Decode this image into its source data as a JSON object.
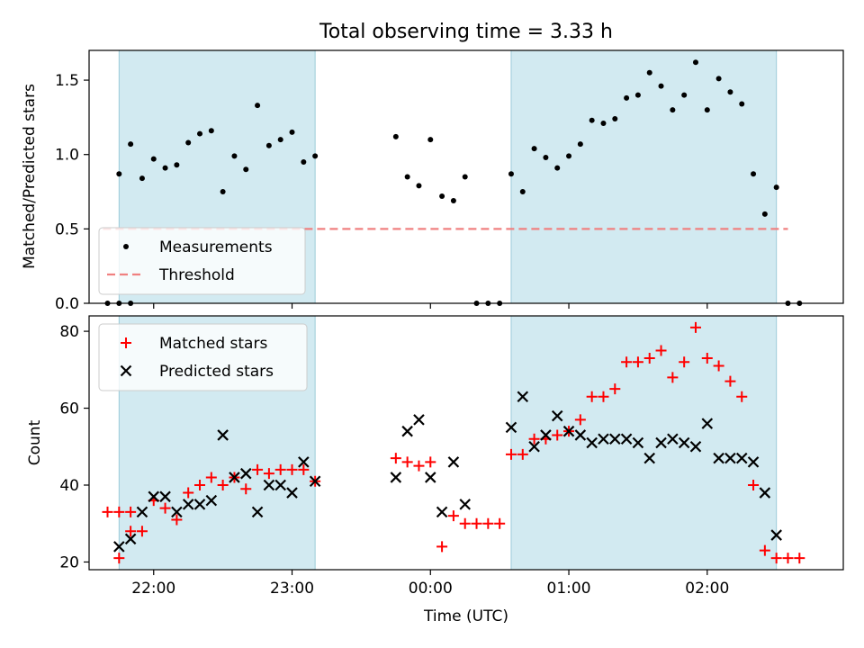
{
  "chart_data": [
    {
      "type": "scatter",
      "title": "Total observing time = 3.33 h",
      "xlabel": "",
      "ylabel": "Matched/Predicted stars",
      "ylim": [
        0,
        1.7
      ],
      "yticks": [
        0.0,
        0.5,
        1.0,
        1.5
      ],
      "yticklabels": [
        "0.0",
        "0.5",
        "1.0",
        "1.5"
      ],
      "xlim": [
        "21:32",
        "02:59"
      ],
      "xticks": [
        "22:00",
        "23:00",
        "00:00",
        "01:00",
        "02:00"
      ],
      "shaded_intervals": [
        [
          "21:45",
          "23:10"
        ],
        [
          "00:35",
          "02:30"
        ]
      ],
      "legend_position": "lower-left",
      "threshold": {
        "name": "Threshold",
        "value": 0.5,
        "color": "#f08080",
        "style": "dashed",
        "x_range": [
          "21:38",
          "02:35"
        ]
      },
      "series": [
        {
          "name": "Measurements",
          "marker": "dot",
          "color": "#000000",
          "points": [
            [
              "21:40",
              0.0
            ],
            [
              "21:45",
              0.0
            ],
            [
              "21:50",
              0.0
            ],
            [
              "21:45",
              0.87
            ],
            [
              "21:50",
              1.07
            ],
            [
              "21:55",
              0.84
            ],
            [
              "22:00",
              0.97
            ],
            [
              "22:05",
              0.91
            ],
            [
              "22:10",
              0.93
            ],
            [
              "22:15",
              1.08
            ],
            [
              "22:20",
              1.14
            ],
            [
              "22:25",
              1.16
            ],
            [
              "22:30",
              0.75
            ],
            [
              "22:35",
              0.99
            ],
            [
              "22:40",
              0.9
            ],
            [
              "22:45",
              1.33
            ],
            [
              "22:50",
              1.06
            ],
            [
              "22:55",
              1.1
            ],
            [
              "23:00",
              1.15
            ],
            [
              "23:05",
              0.95
            ],
            [
              "23:10",
              0.99
            ],
            [
              "23:45",
              1.12
            ],
            [
              "23:50",
              0.85
            ],
            [
              "23:55",
              0.79
            ],
            [
              "00:00",
              1.1
            ],
            [
              "00:05",
              0.72
            ],
            [
              "00:10",
              0.69
            ],
            [
              "00:15",
              0.85
            ],
            [
              "00:20",
              0.0
            ],
            [
              "00:25",
              0.0
            ],
            [
              "00:30",
              0.0
            ],
            [
              "00:35",
              0.87
            ],
            [
              "00:40",
              0.75
            ],
            [
              "00:45",
              1.04
            ],
            [
              "00:50",
              0.98
            ],
            [
              "00:55",
              0.91
            ],
            [
              "01:00",
              0.99
            ],
            [
              "01:05",
              1.07
            ],
            [
              "01:10",
              1.23
            ],
            [
              "01:15",
              1.21
            ],
            [
              "01:20",
              1.24
            ],
            [
              "01:25",
              1.38
            ],
            [
              "01:30",
              1.4
            ],
            [
              "01:35",
              1.55
            ],
            [
              "01:40",
              1.46
            ],
            [
              "01:45",
              1.3
            ],
            [
              "01:50",
              1.4
            ],
            [
              "01:55",
              1.62
            ],
            [
              "02:00",
              1.3
            ],
            [
              "02:05",
              1.51
            ],
            [
              "02:10",
              1.42
            ],
            [
              "02:15",
              1.34
            ],
            [
              "02:20",
              0.87
            ],
            [
              "02:25",
              0.6
            ],
            [
              "02:30",
              0.78
            ],
            [
              "02:35",
              0.0
            ],
            [
              "02:40",
              0.0
            ]
          ]
        }
      ]
    },
    {
      "type": "scatter",
      "title": "",
      "xlabel": "Time (UTC)",
      "ylabel": "Count",
      "ylim": [
        18,
        84
      ],
      "yticks": [
        20,
        40,
        60,
        80
      ],
      "yticklabels": [
        "20",
        "40",
        "60",
        "80"
      ],
      "xlim": [
        "21:32",
        "02:59"
      ],
      "xticks": [
        "22:00",
        "23:00",
        "00:00",
        "01:00",
        "02:00"
      ],
      "shaded_intervals": [
        [
          "21:45",
          "23:10"
        ],
        [
          "00:35",
          "02:30"
        ]
      ],
      "legend_position": "upper-left",
      "series": [
        {
          "name": "Matched stars",
          "marker": "plus",
          "color": "#ff0000",
          "points": [
            [
              "21:40",
              33
            ],
            [
              "21:45",
              33
            ],
            [
              "21:50",
              33
            ],
            [
              "21:45",
              21
            ],
            [
              "21:50",
              28
            ],
            [
              "21:55",
              28
            ],
            [
              "22:00",
              36
            ],
            [
              "22:05",
              34
            ],
            [
              "22:10",
              31
            ],
            [
              "22:15",
              38
            ],
            [
              "22:20",
              40
            ],
            [
              "22:25",
              42
            ],
            [
              "22:30",
              40
            ],
            [
              "22:35",
              42
            ],
            [
              "22:40",
              39
            ],
            [
              "22:45",
              44
            ],
            [
              "22:50",
              43
            ],
            [
              "22:55",
              44
            ],
            [
              "23:00",
              44
            ],
            [
              "23:05",
              44
            ],
            [
              "23:10",
              41
            ],
            [
              "23:45",
              47
            ],
            [
              "23:50",
              46
            ],
            [
              "23:55",
              45
            ],
            [
              "00:00",
              46
            ],
            [
              "00:05",
              24
            ],
            [
              "00:10",
              32
            ],
            [
              "00:15",
              30
            ],
            [
              "00:20",
              30
            ],
            [
              "00:25",
              30
            ],
            [
              "00:30",
              30
            ],
            [
              "00:35",
              48
            ],
            [
              "00:40",
              48
            ],
            [
              "00:45",
              52
            ],
            [
              "00:50",
              52
            ],
            [
              "00:55",
              53
            ],
            [
              "01:00",
              54
            ],
            [
              "01:05",
              57
            ],
            [
              "01:10",
              63
            ],
            [
              "01:15",
              63
            ],
            [
              "01:20",
              65
            ],
            [
              "01:25",
              72
            ],
            [
              "01:30",
              72
            ],
            [
              "01:35",
              73
            ],
            [
              "01:40",
              75
            ],
            [
              "01:45",
              68
            ],
            [
              "01:50",
              72
            ],
            [
              "01:55",
              81
            ],
            [
              "02:00",
              73
            ],
            [
              "02:05",
              71
            ],
            [
              "02:10",
              67
            ],
            [
              "02:15",
              63
            ],
            [
              "02:20",
              40
            ],
            [
              "02:25",
              23
            ],
            [
              "02:30",
              21
            ],
            [
              "02:35",
              21
            ],
            [
              "02:40",
              21
            ]
          ]
        },
        {
          "name": "Predicted stars",
          "marker": "x",
          "color": "#000000",
          "points": [
            [
              "21:45",
              24
            ],
            [
              "21:50",
              26
            ],
            [
              "21:55",
              33
            ],
            [
              "22:00",
              37
            ],
            [
              "22:05",
              37
            ],
            [
              "22:10",
              33
            ],
            [
              "22:15",
              35
            ],
            [
              "22:20",
              35
            ],
            [
              "22:25",
              36
            ],
            [
              "22:30",
              53
            ],
            [
              "22:35",
              42
            ],
            [
              "22:40",
              43
            ],
            [
              "22:45",
              33
            ],
            [
              "22:50",
              40
            ],
            [
              "22:55",
              40
            ],
            [
              "23:00",
              38
            ],
            [
              "23:05",
              46
            ],
            [
              "23:10",
              41
            ],
            [
              "23:45",
              42
            ],
            [
              "23:50",
              54
            ],
            [
              "23:55",
              57
            ],
            [
              "00:00",
              42
            ],
            [
              "00:05",
              33
            ],
            [
              "00:10",
              46
            ],
            [
              "00:15",
              35
            ],
            [
              "00:35",
              55
            ],
            [
              "00:40",
              63
            ],
            [
              "00:45",
              50
            ],
            [
              "00:50",
              53
            ],
            [
              "00:55",
              58
            ],
            [
              "01:00",
              54
            ],
            [
              "01:05",
              53
            ],
            [
              "01:10",
              51
            ],
            [
              "01:15",
              52
            ],
            [
              "01:20",
              52
            ],
            [
              "01:25",
              52
            ],
            [
              "01:30",
              51
            ],
            [
              "01:35",
              47
            ],
            [
              "01:40",
              51
            ],
            [
              "01:45",
              52
            ],
            [
              "01:50",
              51
            ],
            [
              "01:55",
              50
            ],
            [
              "02:00",
              56
            ],
            [
              "02:05",
              47
            ],
            [
              "02:10",
              47
            ],
            [
              "02:15",
              47
            ],
            [
              "02:20",
              46
            ],
            [
              "02:25",
              38
            ],
            [
              "02:30",
              27
            ]
          ]
        }
      ]
    }
  ]
}
